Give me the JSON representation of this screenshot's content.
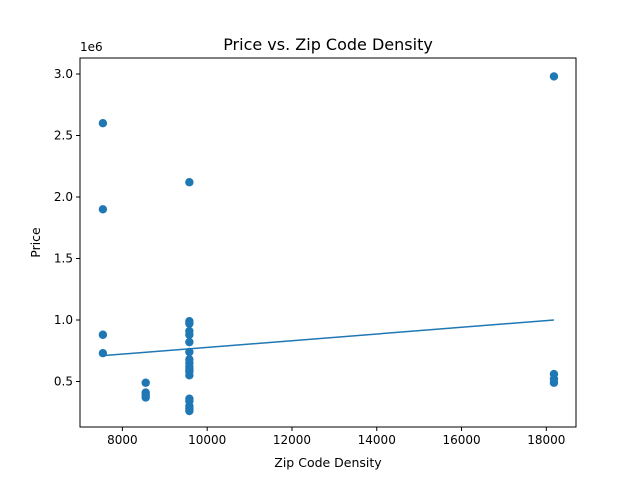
{
  "chart_data": {
    "type": "scatter",
    "title": "Price vs. Zip Code Density",
    "xlabel": "Zip Code Density",
    "ylabel": "Price",
    "y_offset_label": "1e6",
    "xlim": [
      7000,
      18700
    ],
    "ylim": [
      130000,
      3130000
    ],
    "x_ticks": [
      8000,
      10000,
      12000,
      14000,
      16000,
      18000
    ],
    "x_tick_labels": [
      "8000",
      "10000",
      "12000",
      "14000",
      "16000",
      "18000"
    ],
    "y_ticks": [
      500000,
      1000000,
      1500000,
      2000000,
      2500000,
      3000000
    ],
    "y_tick_labels": [
      "0.5",
      "1.0",
      "1.5",
      "2.0",
      "2.5",
      "3.0"
    ],
    "grid": false,
    "colors": {
      "points": "#1f77b4",
      "trend_line": "#1f77b4"
    },
    "series": [
      {
        "kind": "points",
        "x": [
          7540,
          7540,
          7540,
          7540,
          8550,
          8550,
          8550,
          8550,
          9580,
          9580,
          9580,
          9580,
          9580,
          9580,
          9580,
          9580,
          9580,
          9580,
          9580,
          9580,
          9580,
          9580,
          9580,
          9580,
          9580,
          9580,
          18180,
          18180,
          18180,
          18180
        ],
        "y": [
          2600000,
          1900000,
          880000,
          730000,
          490000,
          410000,
          390000,
          370000,
          2120000,
          990000,
          970000,
          910000,
          880000,
          820000,
          740000,
          680000,
          650000,
          620000,
          600000,
          580000,
          550000,
          360000,
          340000,
          300000,
          280000,
          260000,
          2980000,
          560000,
          520000,
          490000
        ]
      },
      {
        "kind": "trend-line",
        "x": [
          7540,
          18180
        ],
        "y": [
          710000,
          1000000
        ]
      }
    ]
  }
}
